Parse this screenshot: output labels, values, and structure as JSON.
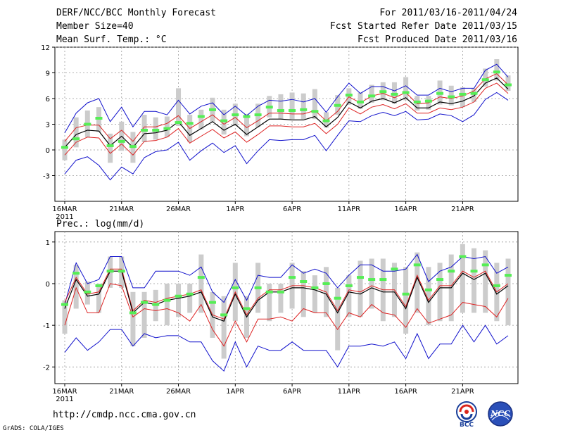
{
  "header": {
    "title": "DERF/NCC/BCC Monthly Forecast",
    "member_size": "Member Size=40",
    "variable": "Mean Surf. Temp.: °C",
    "period": "For 2011/03/16-2011/04/24",
    "fcst_started": "Fcst Started Refer Date 2011/03/15",
    "fcst_produced": "Fcst Produced Date 2011/03/16"
  },
  "footer": {
    "url": "http://cmdp.ncc.cma.gov.cn",
    "credit": "GrADS: COLA/IGES",
    "logo_bcc": "BCC",
    "logo_ncc": "NCC"
  },
  "colors": {
    "bar": "#cccccc",
    "median": "#55ee55",
    "mean": "#000000",
    "std": "#dd2222",
    "envelope": "#1111cc",
    "grid": "#999999"
  },
  "chart_data": [
    {
      "type": "line",
      "title": "Mean Surf. Temp.: °C",
      "x_ticks": [
        "16MAR",
        "21MAR",
        "26MAR",
        "1APR",
        "6APR",
        "11APR",
        "16APR",
        "21APR"
      ],
      "x_year": "2011",
      "y_ticks": [
        12,
        9,
        6,
        3,
        0,
        -3
      ],
      "ylim": [
        -6,
        12
      ],
      "series": [
        {
          "name": "mean",
          "values": [
            0.3,
            1.8,
            2.3,
            2.2,
            0.5,
            1.6,
            0.3,
            1.9,
            2.0,
            2.3,
            3.3,
            1.7,
            2.5,
            3.3,
            2.3,
            3.0,
            1.8,
            2.7,
            3.6,
            3.6,
            3.5,
            3.5,
            3.9,
            2.7,
            3.8,
            5.6,
            4.9,
            5.7,
            6.0,
            5.5,
            6.1,
            4.9,
            4.9,
            5.6,
            5.4,
            5.7,
            6.3,
            7.8,
            8.4,
            7.1
          ]
        },
        {
          "name": "mean_plus_std",
          "values": [
            1.0,
            2.6,
            2.9,
            2.9,
            1.3,
            2.3,
            1.0,
            2.7,
            2.7,
            3.1,
            4.0,
            2.5,
            3.3,
            4.1,
            3.0,
            3.8,
            2.6,
            3.4,
            4.3,
            4.3,
            4.2,
            4.2,
            4.6,
            3.4,
            4.5,
            6.2,
            5.5,
            6.3,
            6.6,
            6.1,
            6.7,
            5.4,
            5.5,
            6.2,
            6.0,
            6.3,
            6.9,
            8.3,
            8.9,
            7.6
          ]
        },
        {
          "name": "mean_minus_std",
          "values": [
            -0.6,
            0.9,
            1.5,
            1.4,
            -0.4,
            0.7,
            -0.6,
            1.0,
            1.1,
            1.5,
            2.5,
            0.8,
            1.6,
            2.4,
            1.4,
            2.1,
            0.9,
            1.8,
            2.8,
            2.8,
            2.7,
            2.7,
            3.1,
            1.9,
            3.0,
            4.9,
            4.2,
            5.0,
            5.3,
            4.8,
            5.4,
            4.3,
            4.3,
            4.9,
            4.7,
            5.0,
            5.6,
            7.2,
            7.8,
            6.6
          ]
        },
        {
          "name": "max",
          "values": [
            2.0,
            4.3,
            5.5,
            6.0,
            3.3,
            5.0,
            2.7,
            4.5,
            4.5,
            4.1,
            5.8,
            4.2,
            5.1,
            5.5,
            4.1,
            5.1,
            4.0,
            5.1,
            5.8,
            5.7,
            5.9,
            5.6,
            6.0,
            4.4,
            6.2,
            7.8,
            6.6,
            7.4,
            7.4,
            6.9,
            7.5,
            6.4,
            6.4,
            7.2,
            6.8,
            7.2,
            7.2,
            9.3,
            10.0,
            8.5
          ]
        },
        {
          "name": "min",
          "values": [
            -2.8,
            -1.2,
            -0.8,
            -1.8,
            -3.5,
            -2.0,
            -2.8,
            -0.9,
            -0.2,
            0.0,
            0.9,
            -1.2,
            -0.1,
            0.8,
            -0.3,
            0.5,
            -1.6,
            -0.1,
            1.2,
            1.1,
            1.2,
            1.2,
            1.7,
            -0.1,
            1.7,
            3.4,
            3.3,
            4.0,
            4.4,
            4.0,
            4.5,
            3.5,
            3.6,
            4.2,
            4.0,
            3.3,
            4.1,
            5.9,
            6.7,
            5.8
          ]
        },
        {
          "name": "median",
          "values": [
            0.3,
            1.3,
            3.0,
            3.7,
            0.5,
            1.0,
            0.4,
            2.3,
            2.3,
            2.5,
            3.2,
            3.1,
            3.9,
            4.7,
            3.4,
            4.1,
            3.9,
            4.1,
            5.0,
            4.6,
            4.6,
            4.7,
            4.5,
            3.4,
            5.2,
            6.4,
            5.6,
            6.3,
            6.8,
            6.5,
            6.7,
            5.6,
            5.7,
            6.6,
            6.2,
            6.5,
            6.6,
            8.2,
            9.1,
            7.6
          ]
        },
        {
          "name": "p25",
          "values": [
            -1.2,
            0.3,
            1.5,
            2.1,
            -1.5,
            -0.1,
            -1.5,
            0.9,
            1.2,
            1.5,
            2.8,
            0.9,
            2.4,
            3.3,
            1.8,
            2.8,
            1.6,
            2.7,
            3.8,
            3.6,
            3.6,
            3.6,
            3.6,
            2.6,
            4.1,
            5.3,
            4.8,
            5.5,
            5.8,
            5.4,
            5.8,
            4.6,
            4.7,
            5.3,
            5.2,
            5.0,
            5.6,
            7.4,
            8.1,
            6.9
          ]
        },
        {
          "name": "p75",
          "values": [
            1.2,
            3.8,
            4.6,
            5.0,
            1.9,
            3.3,
            2.1,
            4.1,
            3.8,
            3.9,
            7.2,
            4.1,
            4.7,
            6.1,
            4.7,
            5.4,
            4.2,
            5.4,
            6.3,
            6.5,
            6.7,
            6.6,
            7.1,
            4.4,
            6.4,
            7.2,
            6.7,
            7.6,
            7.9,
            7.9,
            8.5,
            6.3,
            6.3,
            8.1,
            7.5,
            7.3,
            7.2,
            9.5,
            10.6,
            8.7
          ]
        }
      ]
    },
    {
      "type": "line",
      "title": "Prec.: log(mm/d)",
      "x_ticks": [
        "16MAR",
        "21MAR",
        "26MAR",
        "1APR",
        "6APR",
        "11APR",
        "16APR",
        "21APR"
      ],
      "x_year": "2011",
      "y_ticks": [
        1,
        0,
        -1,
        -2
      ],
      "ylim": [
        -2.4,
        1.25
      ],
      "series": [
        {
          "name": "mean",
          "values": [
            -0.6,
            0.1,
            -0.3,
            -0.25,
            0.3,
            0.3,
            -0.7,
            -0.45,
            -0.5,
            -0.4,
            -0.35,
            -0.3,
            -0.2,
            -0.8,
            -0.9,
            -0.25,
            -0.8,
            -0.4,
            -0.2,
            -0.2,
            -0.1,
            -0.1,
            -0.15,
            -0.25,
            -0.7,
            -0.2,
            -0.25,
            -0.1,
            -0.2,
            -0.2,
            -0.6,
            0.15,
            -0.45,
            -0.1,
            -0.1,
            0.25,
            0.1,
            0.25,
            -0.25,
            -0.05
          ]
        },
        {
          "name": "mean_plus_std",
          "values": [
            -0.45,
            0.15,
            -0.25,
            -0.2,
            0.35,
            0.35,
            -0.65,
            -0.4,
            -0.45,
            -0.35,
            -0.3,
            -0.25,
            -0.15,
            -0.75,
            -0.85,
            -0.2,
            -0.75,
            -0.35,
            -0.15,
            -0.15,
            -0.05,
            -0.05,
            -0.1,
            -0.2,
            -0.65,
            -0.15,
            -0.2,
            -0.05,
            -0.15,
            -0.15,
            -0.55,
            0.2,
            -0.4,
            -0.05,
            -0.05,
            0.3,
            0.15,
            0.3,
            -0.2,
            0.0
          ]
        },
        {
          "name": "mean_minus_std",
          "values": [
            -1.0,
            -0.1,
            -0.7,
            -0.7,
            0.0,
            -0.05,
            -0.8,
            -0.6,
            -0.65,
            -0.6,
            -0.7,
            -0.9,
            -0.5,
            -1.1,
            -1.5,
            -0.9,
            -1.4,
            -0.85,
            -0.85,
            -0.8,
            -0.9,
            -0.6,
            -0.7,
            -0.7,
            -1.1,
            -0.7,
            -0.8,
            -0.5,
            -0.7,
            -0.75,
            -1.05,
            -0.6,
            -0.95,
            -0.85,
            -0.75,
            -0.45,
            -0.5,
            -0.55,
            -0.8,
            -0.35
          ]
        },
        {
          "name": "max",
          "values": [
            -0.5,
            0.5,
            0.0,
            0.1,
            0.65,
            0.65,
            -0.1,
            -0.1,
            0.3,
            0.3,
            0.3,
            0.2,
            0.4,
            -0.2,
            -0.45,
            0.1,
            -0.4,
            0.2,
            0.15,
            0.15,
            0.45,
            0.25,
            0.35,
            0.25,
            -0.1,
            0.2,
            0.45,
            0.45,
            0.3,
            0.3,
            0.35,
            0.7,
            0.05,
            0.3,
            0.4,
            0.65,
            0.6,
            0.65,
            0.25,
            0.4
          ]
        },
        {
          "name": "min",
          "values": [
            -1.65,
            -1.3,
            -1.6,
            -1.4,
            -1.1,
            -1.1,
            -1.5,
            -1.2,
            -1.3,
            -1.25,
            -1.25,
            -1.4,
            -1.4,
            -1.85,
            -2.1,
            -1.4,
            -2.0,
            -1.5,
            -1.6,
            -1.6,
            -1.4,
            -1.6,
            -1.6,
            -1.6,
            -2.0,
            -1.5,
            -1.5,
            -1.45,
            -1.5,
            -1.4,
            -1.8,
            -1.2,
            -1.8,
            -1.45,
            -1.45,
            -1.0,
            -1.4,
            -1.0,
            -1.45,
            -1.25
          ]
        },
        {
          "name": "median",
          "values": [
            -0.5,
            0.25,
            -0.2,
            -0.05,
            0.3,
            0.3,
            -0.7,
            -0.45,
            -0.5,
            -0.4,
            -0.3,
            -0.25,
            0.15,
            -0.45,
            -0.75,
            -0.1,
            -0.6,
            -0.1,
            -0.2,
            -0.2,
            0.15,
            0.05,
            -0.1,
            0.0,
            -0.35,
            -0.05,
            0.15,
            0.1,
            0.1,
            0.35,
            -0.25,
            0.45,
            -0.15,
            0.1,
            0.3,
            0.65,
            0.3,
            0.45,
            -0.05,
            0.2
          ]
        },
        {
          "name": "p25",
          "values": [
            -1.2,
            -0.6,
            -0.5,
            -0.7,
            -0.1,
            -0.1,
            -1.5,
            -1.3,
            -0.9,
            -1.0,
            -0.8,
            -0.7,
            -0.7,
            -1.3,
            -1.8,
            -0.9,
            -1.3,
            -0.7,
            -0.9,
            -0.7,
            -0.6,
            -0.8,
            -0.7,
            -0.8,
            -1.6,
            -0.8,
            -0.8,
            -0.6,
            -0.9,
            -0.8,
            -1.2,
            -0.7,
            -1.0,
            -0.9,
            -0.9,
            -0.7,
            -0.7,
            -0.7,
            -0.9,
            -1.0
          ]
        },
        {
          "name": "p75",
          "values": [
            -0.4,
            0.45,
            0.05,
            0.0,
            0.65,
            0.65,
            -0.2,
            -0.2,
            -0.15,
            0.0,
            0.0,
            0.0,
            0.7,
            -0.2,
            -0.3,
            0.5,
            -0.3,
            0.5,
            0.0,
            0.0,
            0.5,
            0.3,
            0.2,
            0.4,
            -0.1,
            0.2,
            0.55,
            0.6,
            0.6,
            0.5,
            0.4,
            0.75,
            0.4,
            0.5,
            0.7,
            0.95,
            0.85,
            0.8,
            0.5,
            0.6
          ]
        }
      ]
    }
  ]
}
